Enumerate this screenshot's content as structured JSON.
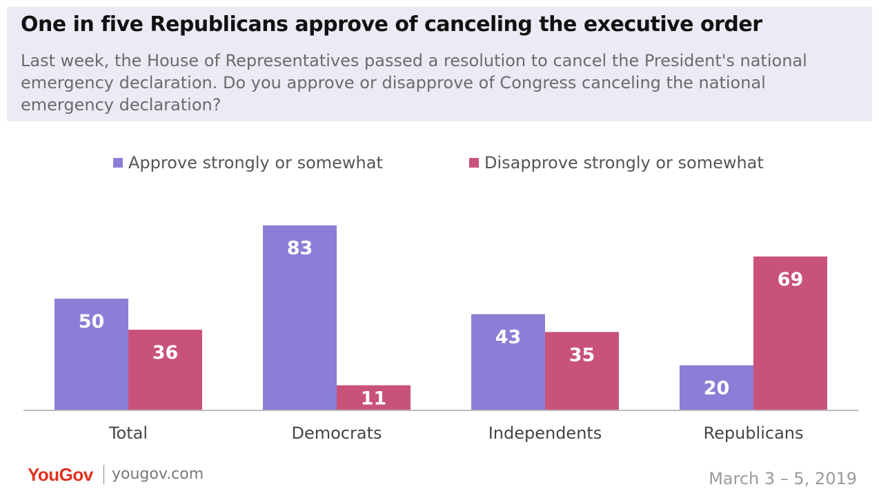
{
  "header": {
    "title": "One in five Republicans approve of canceling the executive order",
    "subtitle": "Last week, the House of Representatives passed a resolution to cancel the President's national emergency declaration. Do you approve or disapprove of Congress canceling the national emergency declaration?"
  },
  "chart_data": {
    "type": "bar",
    "title": "One in five Republicans approve of canceling the executive order",
    "categories": [
      "Total",
      "Democrats",
      "Independents",
      "Republicans"
    ],
    "series": [
      {
        "name": "Approve strongly or somewhat",
        "color": "#8b7ed6",
        "values": [
          50,
          83,
          43,
          20
        ]
      },
      {
        "name": "Disapprove strongly or somewhat",
        "color": "#c9527a",
        "values": [
          36,
          11,
          35,
          69
        ]
      }
    ],
    "ylim": [
      0,
      100
    ],
    "grid": false,
    "legend": "top",
    "data_label_color": "#ffffff"
  },
  "footer": {
    "brand": "YouGov",
    "url": "yougov.com",
    "date": "March 3 – 5, 2019"
  }
}
